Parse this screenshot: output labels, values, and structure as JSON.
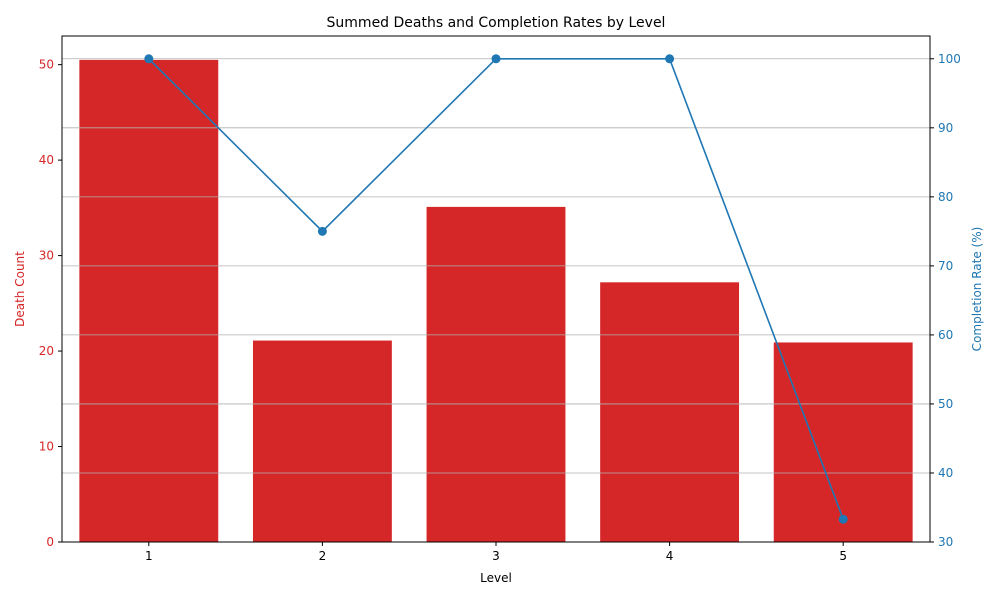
{
  "chart_data": {
    "type": "bar+line",
    "title": "Summed Deaths and Completion Rates by Level",
    "xlabel": "Level",
    "categories": [
      "1",
      "2",
      "3",
      "4",
      "5"
    ],
    "left_axis": {
      "label": "Death Count",
      "ylim": [
        0,
        53
      ],
      "ticks": [
        "0",
        "10",
        "20",
        "30",
        "40",
        "50"
      ],
      "tick_values": [
        0,
        10,
        20,
        30,
        40,
        50
      ],
      "color": "#d62728"
    },
    "right_axis": {
      "label": "Completion Rate (%)",
      "ylim": [
        30,
        103.3
      ],
      "ticks": [
        "30",
        "40",
        "50",
        "60",
        "70",
        "80",
        "90",
        "100"
      ],
      "tick_values": [
        30,
        40,
        50,
        60,
        70,
        80,
        90,
        100
      ],
      "color": "#1f77b4"
    },
    "series": [
      {
        "name": "Death Count",
        "type": "bar",
        "axis": "left",
        "color": "#d62728",
        "values": [
          50.5,
          21.1,
          35.1,
          27.2,
          20.9
        ]
      },
      {
        "name": "Completion Rate (%)",
        "type": "line",
        "axis": "right",
        "color": "#1f77b4",
        "values": [
          100,
          75,
          100,
          100,
          33.3
        ]
      }
    ],
    "grid": "horizontal, right axis",
    "legend": "none"
  }
}
